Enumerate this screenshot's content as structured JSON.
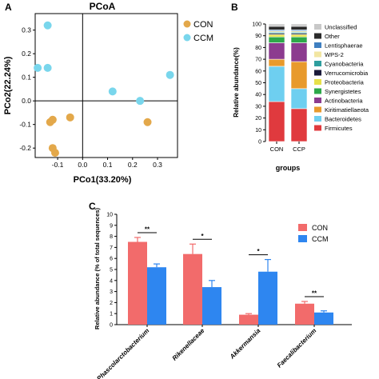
{
  "colors": {
    "con": "#E3A84A",
    "ccm": "#79D6EC",
    "con_bar": "#F26B6B",
    "ccm_bar": "#2E86F0"
  },
  "panel_a": {
    "letter": "A",
    "title": "PCoA",
    "xlabel": "PCo1(33.20%)",
    "ylabel": "PCo2(22.24%)",
    "legend": [
      "CON",
      "CCM"
    ],
    "x_ticks": [
      "-0.1",
      "0.0",
      "0.1",
      "0.2",
      "0.3"
    ],
    "y_ticks": [
      "0.3",
      "0.2",
      "0.1",
      "0.0",
      "-0.1",
      "-0.2"
    ]
  },
  "panel_b": {
    "letter": "B",
    "ylabel": "Relative abundance(%)",
    "xlabel": "groups",
    "categories": [
      "CON",
      "CCP"
    ],
    "y_ticks": [
      "100",
      "90",
      "80",
      "70",
      "60",
      "50",
      "40",
      "30",
      "20",
      "10",
      "0"
    ],
    "legend": [
      "Unclassified",
      "Other",
      "Lentisphaerae",
      "WPS-2",
      "Cyanobacteria",
      "Verrucomicrobia",
      "Proteobacteria",
      "Synergistetes",
      "Actinobacteria",
      "Kiritimatiellaeota",
      "Bacteroidetes",
      "Firmicutes"
    ]
  },
  "panel_c": {
    "letter": "C",
    "ylabel": "Relative abundance (% of total sequences)",
    "legend": [
      "CON",
      "CCM"
    ],
    "categories": [
      "Phascolarctobacterium",
      "Rikenellaceae",
      "Akkermansia",
      "Faecalibacterium"
    ],
    "significance": [
      "**",
      "*",
      "*",
      "**"
    ],
    "y_ticks": [
      "10",
      "9",
      "8",
      "7",
      "6",
      "5",
      "4",
      "3",
      "2",
      "1",
      "0"
    ]
  },
  "chart_data": [
    {
      "type": "scatter",
      "title": "PCoA",
      "xlabel": "PCo1(33.20%)",
      "ylabel": "PCo2(22.24%)",
      "xlim": [
        -0.19,
        0.38
      ],
      "ylim": [
        -0.24,
        0.37
      ],
      "series": [
        {
          "name": "CON",
          "points": [
            [
              -0.13,
              -0.09
            ],
            [
              -0.12,
              -0.08
            ],
            [
              -0.05,
              -0.07
            ],
            [
              0.26,
              -0.09
            ],
            [
              -0.12,
              -0.2
            ],
            [
              -0.11,
              -0.22
            ]
          ]
        },
        {
          "name": "CCM",
          "points": [
            [
              -0.14,
              0.32
            ],
            [
              -0.18,
              0.14
            ],
            [
              -0.14,
              0.14
            ],
            [
              0.12,
              0.04
            ],
            [
              0.23,
              0.0
            ],
            [
              0.35,
              0.11
            ]
          ]
        }
      ]
    },
    {
      "type": "bar",
      "stacked": true,
      "ylabel": "Relative abundance(%)",
      "xlabel": "groups",
      "categories": [
        "CON",
        "CCP"
      ],
      "ylim": [
        0,
        100
      ],
      "series": [
        {
          "name": "Firmicutes",
          "values": [
            34,
            28
          ]
        },
        {
          "name": "Bacteroidetes",
          "values": [
            30,
            17
          ]
        },
        {
          "name": "Kiritimatiellaeota",
          "values": [
            6,
            23
          ]
        },
        {
          "name": "Actinobacteria",
          "values": [
            14,
            16
          ]
        },
        {
          "name": "Synergistetes",
          "values": [
            5,
            5
          ]
        },
        {
          "name": "Proteobacteria",
          "values": [
            2,
            2
          ]
        },
        {
          "name": "Verrucomicrobia",
          "values": [
            1,
            1
          ]
        },
        {
          "name": "Cyanobacteria",
          "values": [
            1,
            1
          ]
        },
        {
          "name": "WPS-2",
          "values": [
            1,
            1
          ]
        },
        {
          "name": "Lentisphaerae",
          "values": [
            1,
            1
          ]
        },
        {
          "name": "Other",
          "values": [
            3,
            3
          ]
        },
        {
          "name": "Unclassified",
          "values": [
            2,
            2
          ]
        }
      ]
    },
    {
      "type": "bar",
      "ylabel": "Relative abundance (% of total sequences)",
      "categories": [
        "Phascolarctobacterium",
        "Rikenellaceae",
        "Akkermansia",
        "Faecalibacterium"
      ],
      "ylim": [
        0,
        10
      ],
      "series": [
        {
          "name": "CON",
          "values": [
            7.5,
            6.4,
            0.9,
            1.9
          ],
          "errors": [
            0.4,
            0.9,
            0.1,
            0.2
          ]
        },
        {
          "name": "CCM",
          "values": [
            5.2,
            3.4,
            4.8,
            1.1
          ],
          "errors": [
            0.3,
            0.6,
            1.1,
            0.15
          ]
        }
      ]
    }
  ]
}
